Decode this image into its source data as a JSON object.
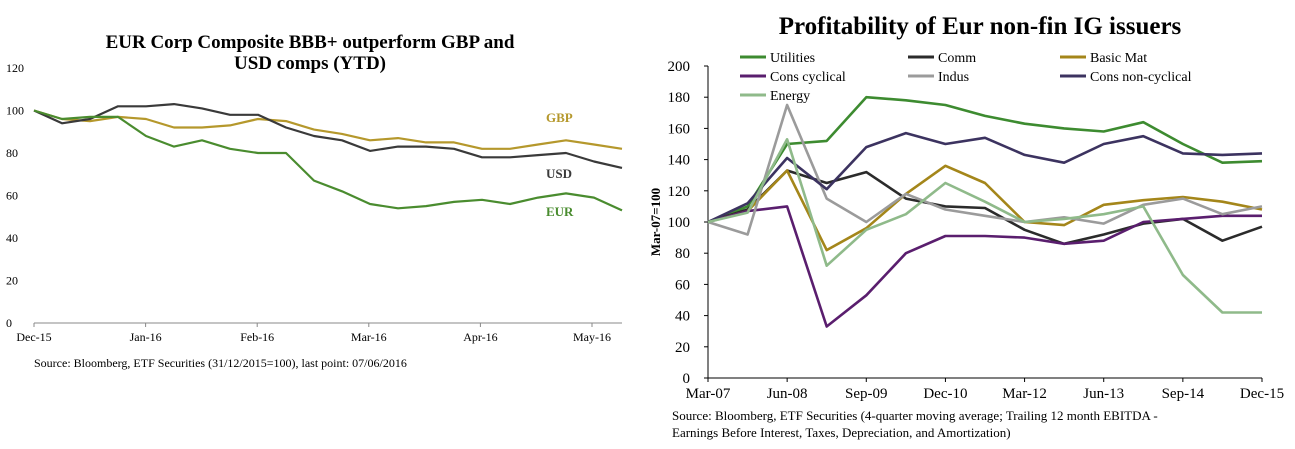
{
  "left": {
    "title_line1": "EUR Corp Composite BBB+ outperform GBP and",
    "title_line2": "USD comps (YTD)",
    "source": "Source: Bloomberg, ETF Securities (31/12/2015=100), last point: 07/06/2016",
    "chart_data": {
      "type": "line",
      "title": "EUR Corp Composite BBB+ outperform GBP and USD comps (YTD)",
      "xlabel": "",
      "ylabel": "",
      "ylim": [
        0,
        120
      ],
      "yticks": [
        "0",
        "20",
        "40",
        "60",
        "80",
        "100",
        "120"
      ],
      "xticks": [
        "Dec-15",
        "Jan-16",
        "Feb-16",
        "Mar-16",
        "Apr-16",
        "May-16"
      ],
      "x": [
        0,
        0.25,
        0.5,
        0.75,
        1,
        1.25,
        1.5,
        1.75,
        2,
        2.25,
        2.5,
        2.75,
        3,
        3.25,
        3.5,
        3.75,
        4,
        4.25,
        4.5,
        4.75,
        5,
        5.25
      ],
      "series": [
        {
          "name": "GBP",
          "color": "#b5982c",
          "values": [
            100,
            96,
            95,
            97,
            96,
            92,
            92,
            93,
            96,
            95,
            91,
            89,
            86,
            87,
            85,
            85,
            82,
            82,
            84,
            86,
            84,
            82
          ]
        },
        {
          "name": "USD",
          "color": "#3a3a3a",
          "values": [
            100,
            94,
            96,
            102,
            102,
            103,
            101,
            98,
            98,
            92,
            88,
            86,
            81,
            83,
            83,
            82,
            78,
            78,
            79,
            80,
            76,
            73
          ]
        },
        {
          "name": "EUR",
          "color": "#4a8c2f",
          "values": [
            100,
            96,
            97,
            97,
            88,
            83,
            86,
            82,
            80,
            80,
            67,
            62,
            56,
            54,
            55,
            57,
            58,
            56,
            59,
            61,
            59,
            53
          ]
        }
      ]
    }
  },
  "right": {
    "title": "Profitability of Eur non-fin IG issuers",
    "source_line1": "Source: Bloomberg, ETF Securities (4-quarter moving average; Trailing 12 month EBITDA -",
    "source_line2": "Earnings Before Interest, Taxes, Depreciation, and Amortization)",
    "chart_data": {
      "type": "line",
      "title": "Profitability of Eur non-fin IG issuers",
      "xlabel": "",
      "ylabel": "Mar-07=100",
      "ylim": [
        0,
        200
      ],
      "yticks": [
        "0",
        "20",
        "40",
        "60",
        "80",
        "100",
        "120",
        "140",
        "160",
        "180",
        "200"
      ],
      "xticks": [
        "Mar-07",
        "Jun-08",
        "Sep-09",
        "Dec-10",
        "Mar-12",
        "Jun-13",
        "Sep-14",
        "Dec-15"
      ],
      "legend_position": "top",
      "x": [
        0,
        0.5,
        1,
        1.5,
        2,
        2.5,
        3,
        3.5,
        4,
        4.5,
        5,
        5.5,
        6,
        6.5,
        7
      ],
      "series": [
        {
          "name": "Utilities",
          "color": "#3d8b30",
          "values": [
            100,
            110,
            150,
            152,
            180,
            178,
            175,
            168,
            163,
            160,
            158,
            164,
            150,
            138,
            139
          ]
        },
        {
          "name": "Comm",
          "color": "#2b2b2b",
          "values": [
            100,
            108,
            133,
            125,
            132,
            115,
            110,
            109,
            95,
            86,
            92,
            99,
            102,
            88,
            97
          ]
        },
        {
          "name": "Basic Mat",
          "color": "#a4861a",
          "values": [
            100,
            107,
            133,
            82,
            96,
            118,
            136,
            125,
            100,
            98,
            111,
            114,
            116,
            113,
            108
          ]
        },
        {
          "name": "Cons cyclical",
          "color": "#5a1e6e",
          "values": [
            100,
            107,
            110,
            33,
            53,
            80,
            91,
            91,
            90,
            86,
            88,
            100,
            102,
            104,
            104
          ]
        },
        {
          "name": "Indus",
          "color": "#9b9b9b",
          "values": [
            100,
            92,
            175,
            115,
            100,
            118,
            108,
            104,
            100,
            103,
            99,
            111,
            115,
            105,
            110
          ]
        },
        {
          "name": "Cons non-cyclical",
          "color": "#3c3360",
          "values": [
            100,
            112,
            141,
            121,
            148,
            157,
            150,
            154,
            143,
            138,
            150,
            155,
            144,
            143,
            144
          ]
        },
        {
          "name": "Energy",
          "color": "#8fba8a",
          "values": [
            100,
            106,
            153,
            72,
            95,
            105,
            125,
            113,
            100,
            102,
            105,
            110,
            66,
            42,
            42
          ]
        }
      ]
    }
  }
}
